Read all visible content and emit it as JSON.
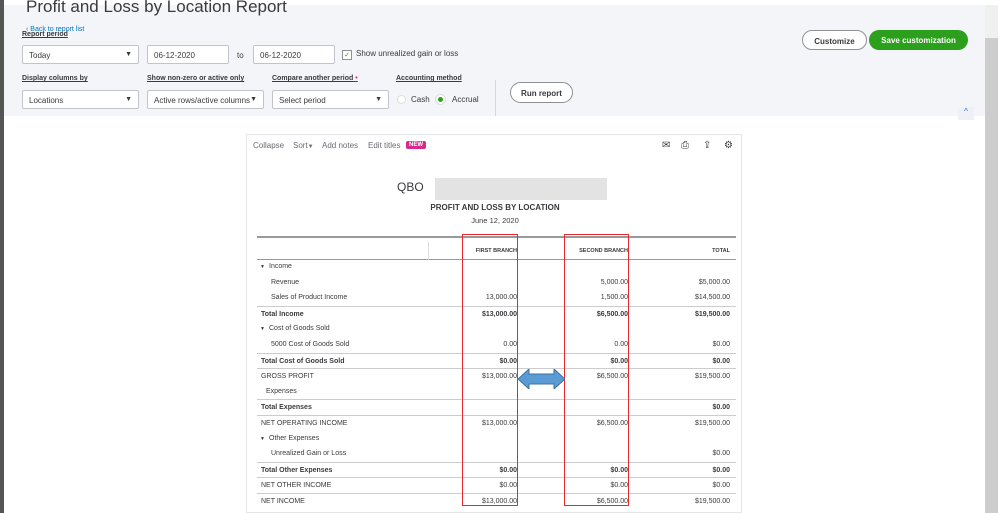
{
  "header": {
    "title": "Profit and Loss by Location Report",
    "back_link": "Back to report list",
    "report_period_label": "Report period",
    "period_value": "Today",
    "date_from": "06-12-2020",
    "to_label": "to",
    "date_to": "06-12-2020",
    "show_unrealized_label": "Show unrealized gain or loss",
    "show_unrealized_checked": true,
    "display_columns_label": "Display columns by",
    "display_columns_value": "Locations",
    "nonzero_label": "Show non-zero or active only",
    "nonzero_value": "Active rows/active columns",
    "compare_label": "Compare another period",
    "compare_value": "Select period",
    "accounting_label": "Accounting method",
    "cash_label": "Cash",
    "accrual_label": "Accrual",
    "accounting_selected": "Accrual",
    "run_report": "Run report",
    "customize": "Customize",
    "save_customization": "Save customization",
    "brand_color": "#2ca01c"
  },
  "toolbar": {
    "collapse": "Collapse",
    "sort": "Sort",
    "add_notes": "Add notes",
    "edit_titles": "Edit titles",
    "new_badge": "NEW"
  },
  "report": {
    "company": "QBO",
    "title": "PROFIT AND LOSS BY LOCATION",
    "date": "June 12, 2020",
    "columns": [
      "FIRST BRANCH",
      "SECOND BRANCH",
      "TOTAL"
    ],
    "rows": [
      {
        "label": "Income",
        "indent": 0,
        "caret": true,
        "values": [
          "",
          "",
          ""
        ]
      },
      {
        "label": "Revenue",
        "indent": 2,
        "values": [
          "",
          "5,000.00",
          "$5,000.00"
        ]
      },
      {
        "label": "Sales of Product Income",
        "indent": 2,
        "values": [
          "13,000.00",
          "1,500.00",
          "$14,500.00"
        ]
      },
      {
        "label": "Total Income",
        "indent": 0,
        "bold": true,
        "values": [
          "$13,000.00",
          "$6,500.00",
          "$19,500.00"
        ]
      },
      {
        "label": "Cost of Goods Sold",
        "indent": 0,
        "caret": true,
        "values": [
          "",
          "",
          ""
        ]
      },
      {
        "label": "5000 Cost of Goods Sold",
        "indent": 2,
        "values": [
          "0.00",
          "0.00",
          "$0.00"
        ]
      },
      {
        "label": "Total Cost of Goods Sold",
        "indent": 0,
        "bold": true,
        "values": [
          "$0.00",
          "$0.00",
          "$0.00"
        ]
      },
      {
        "label": "GROSS PROFIT",
        "indent": 0,
        "values": [
          "$13,000.00",
          "$6,500.00",
          "$19,500.00"
        ]
      },
      {
        "label": "Expenses",
        "indent": 1,
        "values": [
          "",
          "",
          ""
        ]
      },
      {
        "label": "Total Expenses",
        "indent": 0,
        "bold": true,
        "values": [
          "",
          "",
          "$0.00"
        ]
      },
      {
        "label": "NET OPERATING INCOME",
        "indent": 0,
        "values": [
          "$13,000.00",
          "$6,500.00",
          "$19,500.00"
        ]
      },
      {
        "label": "Other Expenses",
        "indent": 0,
        "caret": true,
        "values": [
          "",
          "",
          ""
        ]
      },
      {
        "label": "Unrealized Gain or Loss",
        "indent": 2,
        "values": [
          "",
          "",
          "$0.00"
        ]
      },
      {
        "label": "Total Other Expenses",
        "indent": 0,
        "bold": true,
        "values": [
          "$0.00",
          "$0.00",
          "$0.00"
        ]
      },
      {
        "label": "NET OTHER INCOME",
        "indent": 0,
        "values": [
          "$0.00",
          "$0.00",
          "$0.00"
        ]
      },
      {
        "label": "NET INCOME",
        "indent": 0,
        "values": [
          "$13,000.00",
          "$6,500.00",
          "$19,500.00"
        ]
      }
    ]
  }
}
